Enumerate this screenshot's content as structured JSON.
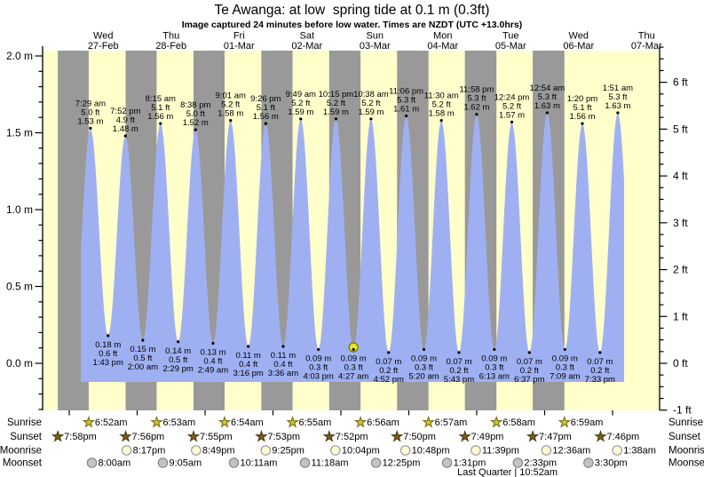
{
  "chart_data": {
    "type": "area",
    "title": "Te Awanga: at low  spring tide at 0.1 m (0.3ft)",
    "subtitle": "Image captured 24 minutes before low water. Times are NZDT (UTC +13.0hrs)",
    "days": [
      {
        "name": "Wed",
        "date": "27-Feb"
      },
      {
        "name": "Thu",
        "date": "28-Feb"
      },
      {
        "name": "Fri",
        "date": "01-Mar"
      },
      {
        "name": "Sat",
        "date": "02-Mar"
      },
      {
        "name": "Sun",
        "date": "03-Mar"
      },
      {
        "name": "Mon",
        "date": "04-Mar"
      },
      {
        "name": "Tue",
        "date": "05-Mar"
      },
      {
        "name": "Wed",
        "date": "06-Mar"
      },
      {
        "name": "Thu",
        "date": "07-Mar"
      }
    ],
    "y_axis_left": {
      "unit": "m",
      "tick_labels": [
        "0.0 m",
        "0.5 m",
        "1.0 m",
        "1.5 m",
        "2.0 m"
      ]
    },
    "y_axis_right": {
      "unit": "ft",
      "tick_labels": [
        "-1 ft",
        "0 ft",
        "1 ft",
        "2 ft",
        "3 ft",
        "4 ft",
        "5 ft",
        "6 ft"
      ]
    },
    "ylim_m": [
      -0.35,
      2.05
    ],
    "tide_events": [
      {
        "day": 0,
        "time": "7:29 am",
        "type": "high",
        "height_m": 1.53,
        "m": "1.53 m",
        "ft": "5.0 ft"
      },
      {
        "day": 0,
        "time": "1:43 pm",
        "type": "low",
        "height_m": 0.18,
        "m": "0.18 m",
        "ft": "0.6 ft"
      },
      {
        "day": 0,
        "time": "7:52 pm",
        "type": "high",
        "height_m": 1.48,
        "m": "1.48 m",
        "ft": "4.9 ft"
      },
      {
        "day": 1,
        "time": "2:00 am",
        "type": "low",
        "height_m": 0.15,
        "m": "0.15 m",
        "ft": "0.5 ft"
      },
      {
        "day": 1,
        "time": "8:15 am",
        "type": "high",
        "height_m": 1.56,
        "m": "1.56 m",
        "ft": "5.1 ft"
      },
      {
        "day": 1,
        "time": "2:29 pm",
        "type": "low",
        "height_m": 0.14,
        "m": "0.14 m",
        "ft": "0.5 ft"
      },
      {
        "day": 1,
        "time": "8:38 pm",
        "type": "high",
        "height_m": 1.52,
        "m": "1.52 m",
        "ft": "5.0 ft"
      },
      {
        "day": 2,
        "time": "2:49 am",
        "type": "low",
        "height_m": 0.13,
        "m": "0.13 m",
        "ft": "0.4 ft"
      },
      {
        "day": 2,
        "time": "9:01 am",
        "type": "high",
        "height_m": 1.58,
        "m": "1.58 m",
        "ft": "5.2 ft"
      },
      {
        "day": 2,
        "time": "3:16 pm",
        "type": "low",
        "height_m": 0.11,
        "m": "0.11 m",
        "ft": "0.4 ft"
      },
      {
        "day": 2,
        "time": "9:26 pm",
        "type": "high",
        "height_m": 1.56,
        "m": "1.56 m",
        "ft": "5.1 ft"
      },
      {
        "day": 3,
        "time": "3:36 am",
        "type": "low",
        "height_m": 0.11,
        "m": "0.11 m",
        "ft": "0.4 ft"
      },
      {
        "day": 3,
        "time": "9:49 am",
        "type": "high",
        "height_m": 1.59,
        "m": "1.59 m",
        "ft": "5.2 ft"
      },
      {
        "day": 3,
        "time": "4:03 pm",
        "type": "low",
        "height_m": 0.09,
        "m": "0.09 m",
        "ft": "0.3 ft"
      },
      {
        "day": 3,
        "time": "10:15 pm",
        "type": "high",
        "height_m": 1.59,
        "m": "1.59 m",
        "ft": "5.2 ft"
      },
      {
        "day": 4,
        "time": "4:27 am",
        "type": "low",
        "height_m": 0.09,
        "m": "0.09 m",
        "ft": "0.3 ft",
        "current": true
      },
      {
        "day": 4,
        "time": "10:38 am",
        "type": "high",
        "height_m": 1.59,
        "m": "1.59 m",
        "ft": "5.2 ft"
      },
      {
        "day": 4,
        "time": "4:52 pm",
        "type": "low",
        "height_m": 0.07,
        "m": "0.07 m",
        "ft": "0.2 ft"
      },
      {
        "day": 4,
        "time": "11:06 pm",
        "type": "high",
        "height_m": 1.61,
        "m": "1.61 m",
        "ft": "5.3 ft"
      },
      {
        "day": 5,
        "time": "5:20 am",
        "type": "low",
        "height_m": 0.09,
        "m": "0.09 m",
        "ft": "0.3 ft"
      },
      {
        "day": 5,
        "time": "11:30 am",
        "type": "high",
        "height_m": 1.58,
        "m": "1.58 m",
        "ft": "5.2 ft"
      },
      {
        "day": 5,
        "time": "5:43 pm",
        "type": "low",
        "height_m": 0.07,
        "m": "0.07 m",
        "ft": "0.2 ft"
      },
      {
        "day": 5,
        "time": "11:58 pm",
        "type": "high",
        "height_m": 1.62,
        "m": "1.62 m",
        "ft": "5.3 ft"
      },
      {
        "day": 6,
        "time": "6:13 am",
        "type": "low",
        "height_m": 0.09,
        "m": "0.09 m",
        "ft": "0.3 ft"
      },
      {
        "day": 6,
        "time": "12:24 pm",
        "type": "high",
        "height_m": 1.57,
        "m": "1.57 m",
        "ft": "5.2 ft"
      },
      {
        "day": 6,
        "time": "6:37 pm",
        "type": "low",
        "height_m": 0.07,
        "m": "0.07 m",
        "ft": "0.2 ft"
      },
      {
        "day": 7,
        "time": "12:54 am",
        "type": "high",
        "height_m": 1.63,
        "m": "1.63 m",
        "ft": "5.3 ft"
      },
      {
        "day": 7,
        "time": "7:09 am",
        "type": "low",
        "height_m": 0.09,
        "m": "0.09 m",
        "ft": "0.3 ft"
      },
      {
        "day": 7,
        "time": "1:20 pm",
        "type": "high",
        "height_m": 1.56,
        "m": "1.56 m",
        "ft": "5.1 ft"
      },
      {
        "day": 7,
        "time": "7:33 pm",
        "type": "low",
        "height_m": 0.07,
        "m": "0.07 m",
        "ft": "0.2 ft"
      },
      {
        "day": 8,
        "time": "1:51 am",
        "type": "high",
        "height_m": 1.63,
        "m": "1.63 m",
        "ft": "5.3 ft"
      }
    ]
  },
  "almanac": {
    "rows": [
      {
        "label": "Sunrise",
        "icon": "sunrise-star-icon",
        "events": [
          {
            "day": 0,
            "time": "6:52am"
          },
          {
            "day": 1,
            "time": "6:53am"
          },
          {
            "day": 2,
            "time": "6:54am"
          },
          {
            "day": 3,
            "time": "6:55am"
          },
          {
            "day": 4,
            "time": "6:56am"
          },
          {
            "day": 5,
            "time": "6:57am"
          },
          {
            "day": 6,
            "time": "6:58am"
          },
          {
            "day": 7,
            "time": "6:59am"
          }
        ]
      },
      {
        "label": "Sunset",
        "icon": "sunset-star-icon",
        "events": [
          {
            "day": -1,
            "time": "7:58pm"
          },
          {
            "day": 0,
            "time": "7:56pm"
          },
          {
            "day": 1,
            "time": "7:55pm"
          },
          {
            "day": 2,
            "time": "7:53pm"
          },
          {
            "day": 3,
            "time": "7:52pm"
          },
          {
            "day": 4,
            "time": "7:50pm"
          },
          {
            "day": 5,
            "time": "7:49pm"
          },
          {
            "day": 6,
            "time": "7:47pm"
          },
          {
            "day": 7,
            "time": "7:46pm"
          }
        ]
      },
      {
        "label": "Moonrise",
        "icon": "moonrise-circle-icon",
        "events": [
          {
            "day": 0,
            "time": "8:17pm"
          },
          {
            "day": 1,
            "time": "8:49pm"
          },
          {
            "day": 2,
            "time": "9:25pm"
          },
          {
            "day": 3,
            "time": "10:04pm"
          },
          {
            "day": 4,
            "time": "10:48pm"
          },
          {
            "day": 5,
            "time": "11:39pm"
          },
          {
            "day": 7,
            "time": "12:36am"
          },
          {
            "day": 8,
            "time": "1:38am"
          }
        ]
      },
      {
        "label": "Moonset",
        "icon": "moonset-circle-icon",
        "events": [
          {
            "day": 0,
            "time": "8:00am"
          },
          {
            "day": 1,
            "time": "9:05am"
          },
          {
            "day": 2,
            "time": "10:11am"
          },
          {
            "day": 3,
            "time": "11:18am"
          },
          {
            "day": 4,
            "time": "12:25pm"
          },
          {
            "day": 5,
            "time": "1:31pm"
          },
          {
            "day": 6,
            "time": "2:33pm"
          },
          {
            "day": 7,
            "time": "3:30pm"
          }
        ]
      }
    ],
    "moon_phase": {
      "text": "Last Quarter | 10:52am",
      "day": 6,
      "time": "10:52am"
    }
  },
  "colors": {
    "day_band": "#ffffcc",
    "night_band": "#999999",
    "tide_fill": "#9fb0f2",
    "day_label_red": "#ee3124",
    "axis": "#000000",
    "current_marker_fill": "#e8e62c",
    "current_marker_stroke": "#7f7b00",
    "sunrise_star_fill": "#d2c526",
    "sunrise_star_stroke": "#6f6815",
    "sunset_star_fill": "#7d5a1d",
    "sunset_star_stroke": "#4a3a10",
    "moonrise_fill": "#ffffd6",
    "moonrise_stroke": "#999999",
    "moonset_fill": "#c3c3c3",
    "moonset_stroke": "#888888"
  }
}
